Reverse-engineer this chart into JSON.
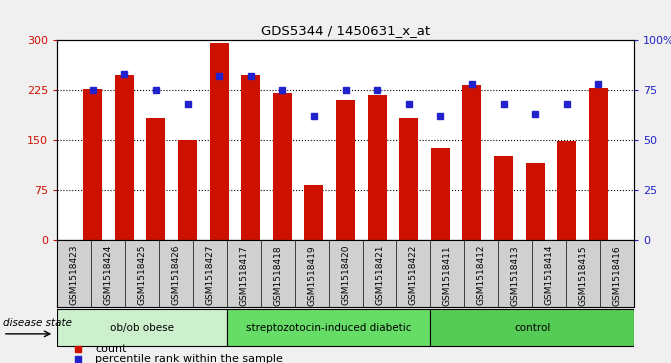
{
  "title": "GDS5344 / 1450631_x_at",
  "samples": [
    "GSM1518423",
    "GSM1518424",
    "GSM1518425",
    "GSM1518426",
    "GSM1518427",
    "GSM1518417",
    "GSM1518418",
    "GSM1518419",
    "GSM1518420",
    "GSM1518421",
    "GSM1518422",
    "GSM1518411",
    "GSM1518412",
    "GSM1518413",
    "GSM1518414",
    "GSM1518415",
    "GSM1518416"
  ],
  "counts": [
    227,
    248,
    182,
    150,
    295,
    248,
    220,
    82,
    210,
    218,
    182,
    138,
    232,
    125,
    115,
    148,
    228
  ],
  "percentile_ranks": [
    75,
    83,
    75,
    68,
    82,
    82,
    75,
    62,
    75,
    75,
    68,
    62,
    78,
    68,
    63,
    68,
    78
  ],
  "groups": [
    {
      "label": "ob/ob obese",
      "start": 0,
      "end": 5,
      "color": "#ccf0cc"
    },
    {
      "label": "streptozotocin-induced diabetic",
      "start": 5,
      "end": 11,
      "color": "#66dd66"
    },
    {
      "label": "control",
      "start": 11,
      "end": 17,
      "color": "#55cc55"
    }
  ],
  "bar_color": "#cc1100",
  "marker_color": "#2222cc",
  "ylim_left": [
    0,
    300
  ],
  "ylim_right": [
    0,
    100
  ],
  "yticks_left": [
    0,
    75,
    150,
    225,
    300
  ],
  "yticks_right": [
    0,
    25,
    50,
    75,
    100
  ],
  "yticklabels_right": [
    "0",
    "25",
    "50",
    "75",
    "100%"
  ],
  "plot_bg": "#ffffff",
  "xtick_bg": "#d0d0d0",
  "disease_state_label": "disease state",
  "legend_count": "count",
  "legend_percentile": "percentile rank within the sample"
}
